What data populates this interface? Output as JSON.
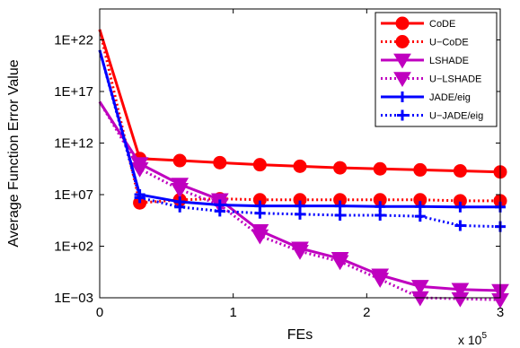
{
  "chart_data": {
    "type": "line",
    "xlabel": "FEs",
    "x_multiplier_label": "x 10",
    "x_multiplier_exponent": "5",
    "ylabel": "Average Function Error Value",
    "y_scale": "log",
    "xlim": [
      0,
      3
    ],
    "ylim_log10": [
      -3,
      25
    ],
    "x_ticks": [
      0,
      1,
      2,
      3
    ],
    "x_tick_labels": [
      "0",
      "1",
      "2",
      "3"
    ],
    "y_ticks_log10": [
      -3,
      2,
      7,
      12,
      17,
      22
    ],
    "y_tick_labels": [
      "1E−03",
      "1E+02",
      "1E+07",
      "1E+12",
      "1E+17",
      "1E+22"
    ],
    "legend_position": "top-right",
    "grid": false,
    "x": [
      0,
      0.3,
      0.6,
      0.9,
      1.2,
      1.5,
      1.8,
      2.1,
      2.4,
      2.7,
      3.0
    ],
    "series": [
      {
        "name": "CoDE",
        "color": "#ff0000",
        "dash": "solid",
        "marker": "circle",
        "log10_values": [
          23.0,
          10.5,
          10.3,
          10.1,
          9.9,
          9.75,
          9.6,
          9.5,
          9.4,
          9.3,
          9.2
        ]
      },
      {
        "name": "U−CoDE",
        "color": "#ff0000",
        "dash": "dotted",
        "marker": "circle",
        "log10_values": [
          23.0,
          6.2,
          6.5,
          6.6,
          6.5,
          6.5,
          6.5,
          6.5,
          6.5,
          6.4,
          6.4
        ]
      },
      {
        "name": "LSHADE",
        "color": "#bf00bf",
        "dash": "solid",
        "marker": "triangle-down",
        "log10_values": [
          16.0,
          10.0,
          8.0,
          6.5,
          3.5,
          1.8,
          0.8,
          -0.8,
          -1.9,
          -2.2,
          -2.3
        ]
      },
      {
        "name": "U−LSHADE",
        "color": "#bf00bf",
        "dash": "dotted",
        "marker": "triangle-down",
        "log10_values": [
          16.0,
          9.5,
          7.5,
          6.0,
          3.0,
          1.5,
          0.5,
          -1.2,
          -3.0,
          -3.1,
          -3.2
        ]
      },
      {
        "name": "JADE/eig",
        "color": "#0000ff",
        "dash": "solid",
        "marker": "plus",
        "log10_values": [
          21.0,
          7.0,
          6.3,
          6.0,
          5.9,
          5.9,
          5.9,
          5.85,
          5.85,
          5.8,
          5.8
        ]
      },
      {
        "name": "U−JADE/eig",
        "color": "#0000ff",
        "dash": "dotted",
        "marker": "plus",
        "log10_values": [
          21.0,
          6.7,
          5.8,
          5.4,
          5.2,
          5.1,
          5.0,
          5.0,
          4.9,
          4.0,
          3.9
        ]
      }
    ]
  }
}
